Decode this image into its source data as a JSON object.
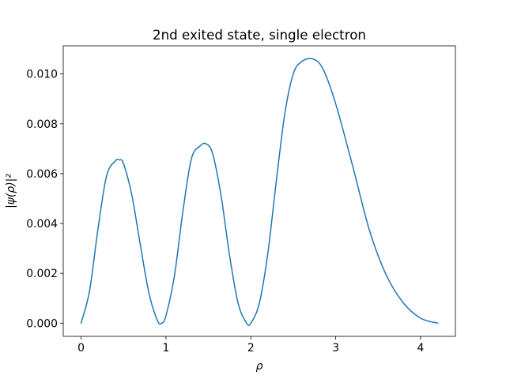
{
  "chart_data": {
    "type": "line",
    "title": "2nd exited state, single electron",
    "xlabel": "ρ",
    "ylabel": "|ψ(ρ)|²",
    "xlim": [
      -0.21,
      4.41
    ],
    "ylim": [
      -0.00053,
      0.01113
    ],
    "x_ticks": [
      0,
      1,
      2,
      3,
      4
    ],
    "x_tick_labels": [
      "0",
      "1",
      "2",
      "3",
      "4"
    ],
    "y_ticks": [
      0.0,
      0.002,
      0.004,
      0.006,
      0.008,
      0.01
    ],
    "y_tick_labels": [
      "0.000",
      "0.002",
      "0.004",
      "0.006",
      "0.008",
      "0.010"
    ],
    "grid": false,
    "legend": "none",
    "line_color": "#1f77b4",
    "series": [
      {
        "x": [
          0.0,
          0.1,
          0.2,
          0.3,
          0.4,
          0.45,
          0.5,
          0.6,
          0.7,
          0.8,
          0.9,
          0.95,
          1.0,
          1.1,
          1.2,
          1.3,
          1.4,
          1.47,
          1.55,
          1.65,
          1.75,
          1.85,
          1.95,
          2.0,
          2.1,
          2.2,
          2.3,
          2.4,
          2.5,
          2.6,
          2.73,
          2.85,
          3.0,
          3.2,
          3.4,
          3.6,
          3.8,
          4.0,
          4.2
        ],
        "y": [
          0.0,
          0.0013,
          0.0038,
          0.0059,
          0.0065,
          0.00655,
          0.0064,
          0.0051,
          0.0031,
          0.0012,
          0.0001,
          0.0,
          0.0003,
          0.0019,
          0.0045,
          0.0066,
          0.0071,
          0.0072,
          0.0068,
          0.0051,
          0.0027,
          0.0008,
          0.0,
          0.0,
          0.0008,
          0.0028,
          0.0057,
          0.0084,
          0.01,
          0.0105,
          0.0106,
          0.0102,
          0.0088,
          0.0063,
          0.0037,
          0.0019,
          0.0008,
          0.0002,
          0.0
        ]
      }
    ]
  }
}
